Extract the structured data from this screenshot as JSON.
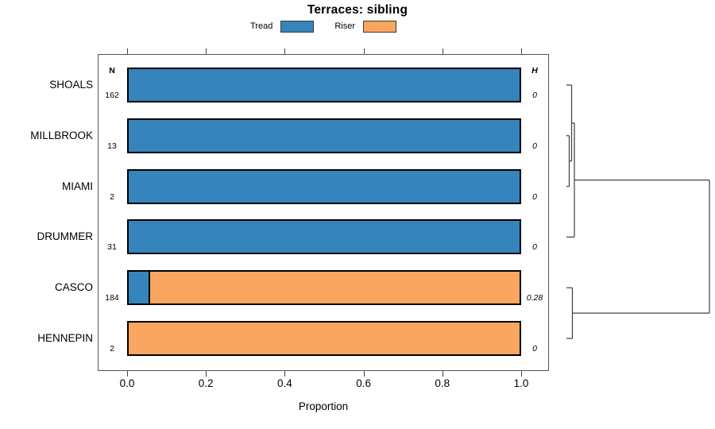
{
  "title": "Terraces: sibling",
  "legend": {
    "position": "top",
    "items": [
      {
        "label": "Tread",
        "color": "#3585BC"
      },
      {
        "label": "Riser",
        "color": "#FBA660"
      }
    ]
  },
  "chart_data": {
    "type": "bar",
    "orientation": "horizontal",
    "stacked": true,
    "title": "Terraces: sibling",
    "xlabel": "Proportion",
    "xlim": [
      0,
      1
    ],
    "x_ticks": [
      "0.0",
      "0.2",
      "0.4",
      "0.6",
      "0.8",
      "1.0"
    ],
    "grid": false,
    "legend_position": "top",
    "categories": [
      "SHOALS",
      "MILLBROOK",
      "MIAMI",
      "DRUMMER",
      "CASCO",
      "HENNEPIN"
    ],
    "series": [
      {
        "name": "Tread",
        "color": "#3585BC",
        "values": [
          1,
          1,
          1,
          1,
          0.05,
          0
        ]
      },
      {
        "name": "Riser",
        "color": "#FBA660",
        "values": [
          0,
          0,
          0,
          0,
          0.95,
          1
        ]
      }
    ],
    "n_column": {
      "header": "N",
      "values": [
        "162",
        "13",
        "2",
        "31",
        "184",
        "2"
      ]
    },
    "h_column": {
      "header": "H",
      "values": [
        "0",
        "0",
        "0",
        "0",
        "0.28",
        "0"
      ]
    },
    "dendrogram": {
      "description": "row clustering drawn to the right of the plot; dx = node height in px from leaf baseline",
      "line_color": "#444444",
      "tree": {
        "dx": 180,
        "children": [
          {
            "dx": 10,
            "children": [
              {
                "dx": 6.5,
                "children": [
                  {
                    "leaf": 0
                  },
                  {
                    "dx": 3.5,
                    "children": [
                      {
                        "leaf": 1
                      },
                      {
                        "leaf": 2
                      }
                    ]
                  }
                ]
              },
              {
                "leaf": 3
              }
            ]
          },
          {
            "dx": 7.5,
            "children": [
              {
                "leaf": 4
              },
              {
                "leaf": 5
              }
            ]
          }
        ]
      }
    }
  }
}
